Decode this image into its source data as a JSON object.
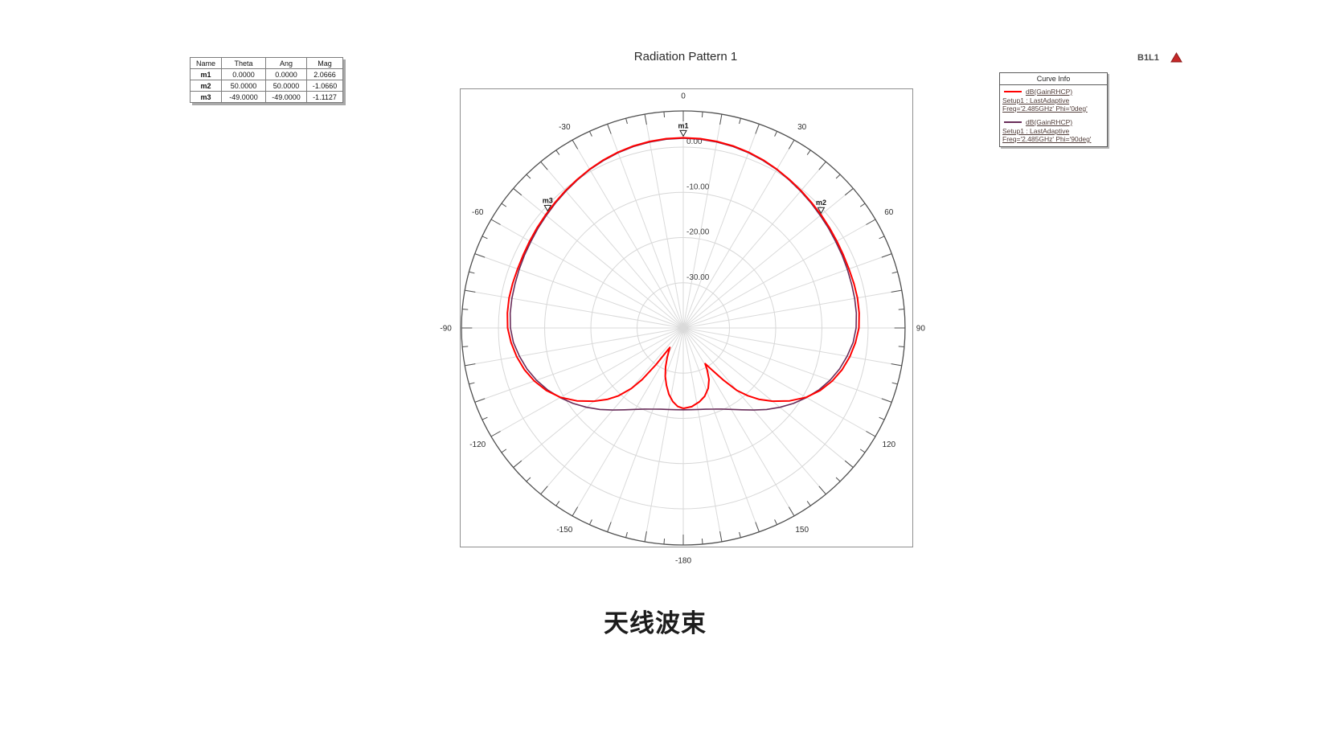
{
  "title": "Radiation Pattern 1",
  "caption": "天线波束",
  "report_label": "B1L1",
  "marker_table": {
    "columns": [
      "Name",
      "Theta",
      "Ang",
      "Mag"
    ],
    "rows": [
      [
        "m1",
        "0.0000",
        "0.0000",
        "2.0666"
      ],
      [
        "m2",
        "50.0000",
        "50.0000",
        "-1.0660"
      ],
      [
        "m3",
        "-49.0000",
        "-49.0000",
        "-1.1127"
      ]
    ]
  },
  "legend": {
    "header": "Curve Info",
    "entries": [
      {
        "label": "dB(GainRHCP)",
        "line2": "Setup1 : LastAdaptive",
        "line3": "Freq='2.485GHz' Phi='0deg'"
      },
      {
        "label": "dB(GainRHCP)",
        "line2": "Setup1 : LastAdaptive",
        "line3": "Freq='2.485GHz' Phi='90deg'"
      }
    ]
  },
  "chart_data": {
    "type": "line",
    "subtype": "polar",
    "title": "Radiation Pattern 1",
    "angle_unit": "deg",
    "angle_labels": [
      0,
      30,
      60,
      90,
      120,
      150,
      -180,
      -150,
      -120,
      -90,
      -60,
      -30
    ],
    "radial_label_values": [
      0,
      -10,
      -20,
      -30
    ],
    "radial_tick_labels": [
      "0.00",
      "-10.00",
      "-20.00",
      "-30.00"
    ],
    "radial_min": -40,
    "grid": true,
    "legend_position": "top-right",
    "series": [
      {
        "name": "dB(GainRHCP) Setup1:LastAdaptive Freq='2.485GHz' Phi='90deg'",
        "color": "#692d5a",
        "points": [
          [
            -180,
            -21.9
          ],
          [
            -175,
            -21.85
          ],
          [
            -170,
            -21.7
          ],
          [
            -165,
            -21.4
          ],
          [
            -160,
            -20.9
          ],
          [
            -155,
            -20.2
          ],
          [
            -150,
            -19.2
          ],
          [
            -145,
            -17.9
          ],
          [
            -140,
            -16.3
          ],
          [
            -135,
            -14.5
          ],
          [
            -130,
            -12.7
          ],
          [
            -125,
            -10.9
          ],
          [
            -120,
            -9.2
          ],
          [
            -115,
            -7.6
          ],
          [
            -110,
            -6.2
          ],
          [
            -105,
            -5.0
          ],
          [
            -100,
            -4.0
          ],
          [
            -95,
            -3.1
          ],
          [
            -90,
            -2.6
          ],
          [
            -85,
            -2.4
          ],
          [
            -80,
            -2.35
          ],
          [
            -75,
            -2.3
          ],
          [
            -70,
            -2.2
          ],
          [
            -65,
            -2.05
          ],
          [
            -60,
            -1.9
          ],
          [
            -55,
            -1.6
          ],
          [
            -50,
            -1.3
          ],
          [
            -45,
            -0.9
          ],
          [
            -40,
            -0.5
          ],
          [
            -35,
            -0.05
          ],
          [
            -30,
            0.45
          ],
          [
            -25,
            0.85
          ],
          [
            -20,
            1.25
          ],
          [
            -15,
            1.55
          ],
          [
            -10,
            1.75
          ],
          [
            -5,
            1.9
          ],
          [
            0,
            1.95
          ],
          [
            5,
            1.9
          ],
          [
            10,
            1.75
          ],
          [
            15,
            1.55
          ],
          [
            20,
            1.25
          ],
          [
            25,
            0.85
          ],
          [
            30,
            0.45
          ],
          [
            35,
            -0.05
          ],
          [
            40,
            -0.5
          ],
          [
            45,
            -0.9
          ],
          [
            50,
            -1.3
          ],
          [
            55,
            -1.6
          ],
          [
            60,
            -1.9
          ],
          [
            65,
            -2.05
          ],
          [
            70,
            -2.2
          ],
          [
            75,
            -2.3
          ],
          [
            80,
            -2.35
          ],
          [
            85,
            -2.4
          ],
          [
            90,
            -2.6
          ],
          [
            95,
            -3.1
          ],
          [
            100,
            -4.0
          ],
          [
            105,
            -5.0
          ],
          [
            110,
            -6.2
          ],
          [
            115,
            -7.6
          ],
          [
            120,
            -9.2
          ],
          [
            125,
            -10.9
          ],
          [
            130,
            -12.7
          ],
          [
            135,
            -14.5
          ],
          [
            140,
            -16.3
          ],
          [
            145,
            -17.9
          ],
          [
            150,
            -19.2
          ],
          [
            155,
            -20.2
          ],
          [
            160,
            -20.9
          ],
          [
            165,
            -21.4
          ],
          [
            170,
            -21.7
          ],
          [
            175,
            -21.85
          ],
          [
            180,
            -21.9
          ]
        ]
      },
      {
        "name": "dB(GainRHCP) Setup1:LastAdaptive Freq='2.485GHz' Phi='0deg'",
        "color": "#ff0000",
        "points": [
          [
            -180,
            -22.2
          ],
          [
            -176,
            -22.6
          ],
          [
            -172,
            -23.6
          ],
          [
            -168,
            -25.0
          ],
          [
            -164,
            -26.8
          ],
          [
            -160,
            -28.6
          ],
          [
            -156,
            -30.6
          ],
          [
            -152,
            -32.6
          ],
          [
            -149,
            -33.9
          ],
          [
            -146,
            -34.8
          ],
          [
            -144,
            -30.0
          ],
          [
            -142,
            -25.5
          ],
          [
            -140,
            -22.5
          ],
          [
            -137,
            -19.5
          ],
          [
            -134,
            -17.3
          ],
          [
            -130,
            -14.8
          ],
          [
            -125,
            -11.9
          ],
          [
            -120,
            -9.3
          ],
          [
            -115,
            -7.3
          ],
          [
            -110,
            -5.7
          ],
          [
            -105,
            -4.4
          ],
          [
            -100,
            -3.4
          ],
          [
            -95,
            -2.6
          ],
          [
            -90,
            -2.0
          ],
          [
            -85,
            -1.8
          ],
          [
            -80,
            -1.72
          ],
          [
            -75,
            -1.78
          ],
          [
            -70,
            -1.85
          ],
          [
            -65,
            -1.78
          ],
          [
            -60,
            -1.62
          ],
          [
            -55,
            -1.38
          ],
          [
            -50,
            -1.11
          ],
          [
            -45,
            -0.76
          ],
          [
            -40,
            -0.36
          ],
          [
            -35,
            0.07
          ],
          [
            -30,
            0.52
          ],
          [
            -25,
            0.97
          ],
          [
            -20,
            1.36
          ],
          [
            -15,
            1.67
          ],
          [
            -10,
            1.88
          ],
          [
            -5,
            2.02
          ],
          [
            0,
            2.07
          ],
          [
            5,
            2.02
          ],
          [
            10,
            1.88
          ],
          [
            15,
            1.67
          ],
          [
            20,
            1.36
          ],
          [
            25,
            0.97
          ],
          [
            30,
            0.52
          ],
          [
            35,
            0.07
          ],
          [
            40,
            -0.36
          ],
          [
            45,
            -0.76
          ],
          [
            50,
            -1.07
          ],
          [
            55,
            -1.38
          ],
          [
            60,
            -1.62
          ],
          [
            65,
            -1.78
          ],
          [
            70,
            -1.85
          ],
          [
            75,
            -1.78
          ],
          [
            80,
            -1.72
          ],
          [
            85,
            -1.8
          ],
          [
            90,
            -2.0
          ],
          [
            95,
            -2.6
          ],
          [
            100,
            -3.4
          ],
          [
            105,
            -4.4
          ],
          [
            110,
            -5.7
          ],
          [
            115,
            -7.3
          ],
          [
            120,
            -9.3
          ],
          [
            125,
            -11.9
          ],
          [
            130,
            -14.8
          ],
          [
            134,
            -17.3
          ],
          [
            137,
            -19.5
          ],
          [
            140,
            -22.0
          ],
          [
            143,
            -25.5
          ],
          [
            146,
            -28.7
          ],
          [
            149,
            -30.8
          ],
          [
            151,
            -29.3
          ],
          [
            154,
            -27.3
          ],
          [
            158,
            -25.6
          ],
          [
            163,
            -24.2
          ],
          [
            168,
            -23.3
          ],
          [
            174,
            -22.5
          ],
          [
            180,
            -22.2
          ]
        ]
      }
    ],
    "markers": [
      {
        "name": "m1",
        "theta": 0.0,
        "mag": 2.0666
      },
      {
        "name": "m2",
        "theta": 50.0,
        "mag": -1.066
      },
      {
        "name": "m3",
        "theta": -49.0,
        "mag": -1.1127
      }
    ]
  }
}
